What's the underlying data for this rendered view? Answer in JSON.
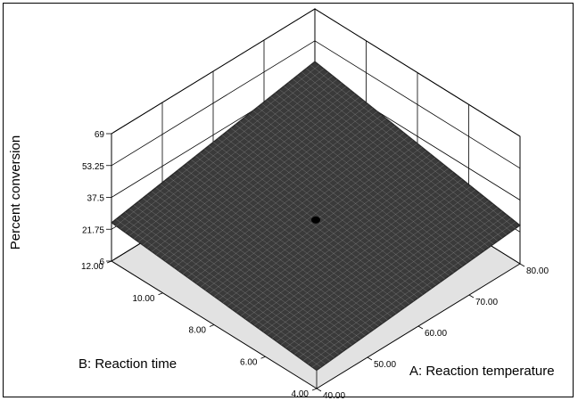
{
  "chart_data": {
    "type": "surface",
    "zlabel": "Percent conversion",
    "xlabel": "A: Reaction temperature",
    "ylabel": "B: Reaction time",
    "x_ticks": [
      "40.00",
      "50.00",
      "60.00",
      "70.00",
      "80.00"
    ],
    "y_ticks": [
      "4.00",
      "6.00",
      "8.00",
      "10.00",
      "12.00"
    ],
    "z_ticks": [
      "6",
      "21.75",
      "37.5",
      "53.25",
      "69"
    ],
    "xlim": [
      40,
      80
    ],
    "ylim": [
      4,
      12
    ],
    "zlim": [
      6,
      69
    ],
    "surface_corners": [
      {
        "x": 40,
        "y": 4,
        "z": 15
      },
      {
        "x": 80,
        "y": 4,
        "z": 25
      },
      {
        "x": 40,
        "y": 12,
        "z": 25
      },
      {
        "x": 80,
        "y": 12,
        "z": 43
      }
    ],
    "center_point": {
      "x": 60,
      "y": 8,
      "z": 27
    },
    "grid": true,
    "colors": {
      "surface": "#3a3a3a",
      "mesh": "#d0d0d0",
      "floor": "#e2e2e2",
      "box": "#000000"
    }
  }
}
